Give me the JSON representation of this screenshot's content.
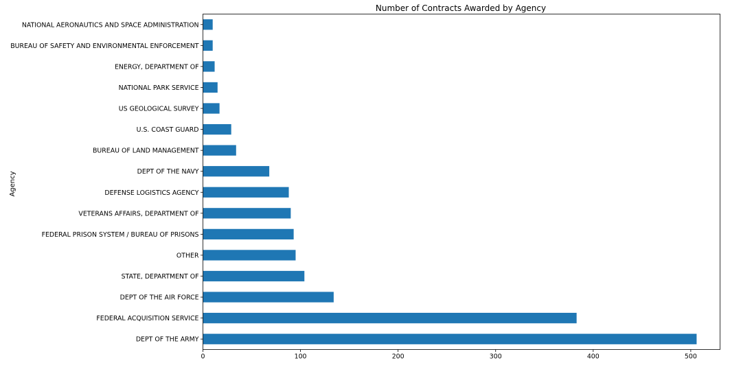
{
  "chart_data": {
    "type": "bar",
    "orientation": "horizontal",
    "title": "Number of Contracts Awarded by Agency",
    "xlabel": "",
    "ylabel": "Agency",
    "xlim": [
      0,
      530
    ],
    "xticks": [
      0,
      100,
      200,
      300,
      400,
      500
    ],
    "grid": false,
    "bar_color": "#1f77b4",
    "categories": [
      "DEPT OF THE ARMY",
      "FEDERAL ACQUISITION SERVICE",
      "DEPT OF THE AIR FORCE",
      "STATE, DEPARTMENT OF",
      "OTHER",
      "FEDERAL PRISON SYSTEM / BUREAU OF PRISONS",
      "VETERANS AFFAIRS, DEPARTMENT OF",
      "DEFENSE LOGISTICS AGENCY",
      "DEPT OF THE NAVY",
      "BUREAU OF LAND MANAGEMENT",
      "U.S. COAST GUARD",
      "US GEOLOGICAL SURVEY",
      "NATIONAL PARK SERVICE",
      "ENERGY, DEPARTMENT OF",
      "BUREAU OF SAFETY AND ENVIRONMENTAL ENFORCEMENT",
      "NATIONAL AERONAUTICS AND SPACE ADMINISTRATION"
    ],
    "values": [
      506,
      383,
      134,
      104,
      95,
      93,
      90,
      88,
      68,
      34,
      29,
      17,
      15,
      12,
      10,
      10
    ]
  }
}
